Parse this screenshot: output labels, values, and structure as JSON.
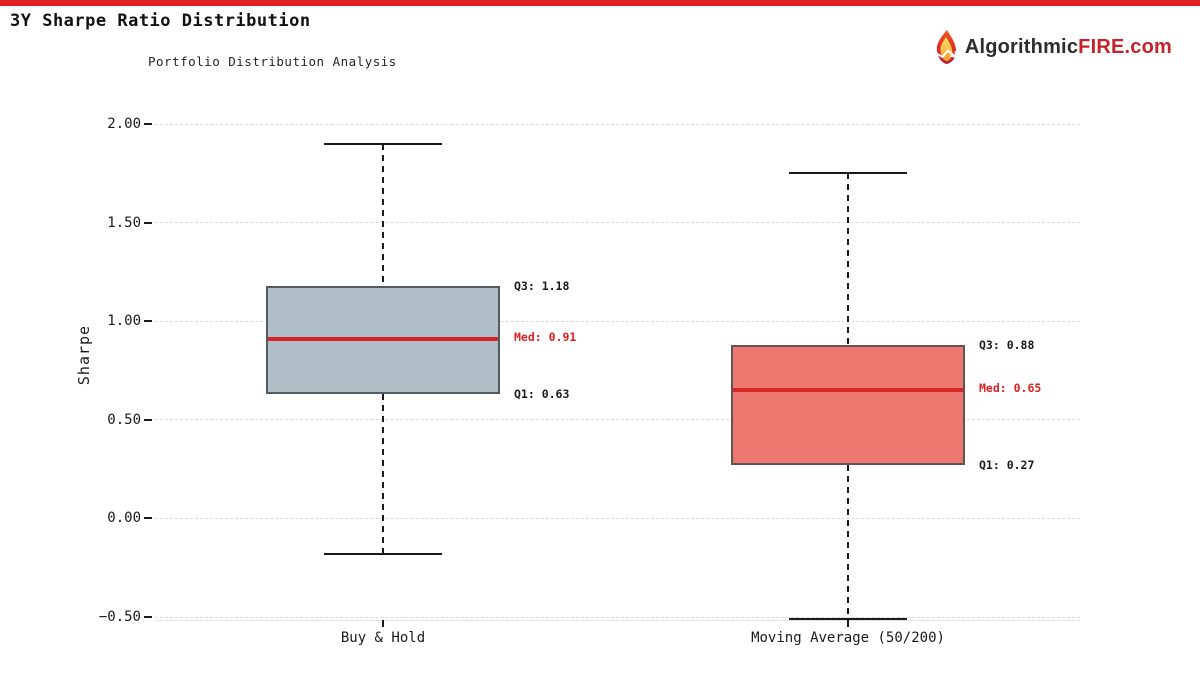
{
  "header": {
    "title": "3Y Sharpe Ratio Distribution",
    "accent_bar_color": "#e02222",
    "logo": {
      "brand_dark": "Algorithmic",
      "brand_red": "FIRE.com",
      "brand_dark_color": "#2d2d2d",
      "brand_red_color": "#c4232b"
    }
  },
  "chart_data": {
    "type": "box",
    "title": "3Y Sharpe Ratio Distribution",
    "subtitle": "Portfolio Distribution Analysis",
    "ylabel": "Sharpe",
    "xlabel": "",
    "grid": true,
    "ylim": [
      -0.55,
      2.07
    ],
    "ytick_labels": [
      "2.00",
      "1.50",
      "1.00",
      "0.50",
      "0.00",
      "−0.50"
    ],
    "ytick_values": [
      2.0,
      1.5,
      1.0,
      0.5,
      0.0,
      -0.5
    ],
    "categories": [
      "Buy & Hold",
      "Moving Average (50/200)"
    ],
    "series": [
      {
        "label": "Buy & Hold",
        "whisker_low": -0.18,
        "q1": 0.63,
        "median": 0.91,
        "q3": 1.18,
        "whisker_high": 1.9,
        "fill_color": "rgba(167,183,194,0.9)",
        "edge_color": "#535b61",
        "annotations": {
          "q3": "Q3: 1.18",
          "med": "Med: 0.91",
          "q1": "Q1: 0.63"
        }
      },
      {
        "label": "Moving Average (50/200)",
        "whisker_low": -0.51,
        "q1": 0.27,
        "median": 0.65,
        "q3": 0.88,
        "whisker_high": 1.75,
        "fill_color": "rgba(235,105,95,0.9)",
        "edge_color": "#635352",
        "annotations": {
          "q3": "Q3: 0.88",
          "med": "Med: 0.65",
          "q1": "Q1: 0.27"
        }
      }
    ],
    "colors": {
      "median_line": "#d42626",
      "annotation_med_text": "#e02020",
      "annotation_text": "#1a1a1a",
      "gridline": "#d9d9d9",
      "whisker": "#1a1a1a"
    }
  }
}
